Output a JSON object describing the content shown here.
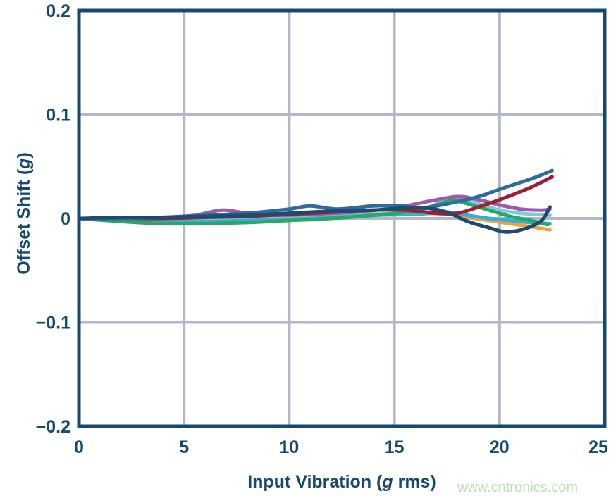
{
  "watermark": {
    "text": "www.cntronics.com",
    "color": "#b9dfae"
  },
  "chart_data": {
    "type": "line",
    "title": "",
    "xlabel": "Input Vibration (g rms)",
    "ylabel": "Offset Shift (g)",
    "xlabel_parts": {
      "pre": "Input Vibration (",
      "italic": "g",
      "post": " rms)"
    },
    "ylabel_parts": {
      "pre": "Offset Shift (",
      "italic": "g",
      "post": ")"
    },
    "xlim": [
      0,
      25
    ],
    "ylim": [
      -0.2,
      0.2
    ],
    "grid": true,
    "legend": "none",
    "x_ticks": [
      {
        "v": 0,
        "label": "0"
      },
      {
        "v": 5,
        "label": "5"
      },
      {
        "v": 10,
        "label": "10"
      },
      {
        "v": 15,
        "label": "15"
      },
      {
        "v": 20,
        "label": "20"
      },
      {
        "v": 25,
        "label": "25"
      }
    ],
    "y_ticks": [
      {
        "v": 0.2,
        "label": "0.2"
      },
      {
        "v": 0.1,
        "label": "0.1"
      },
      {
        "v": 0,
        "label": "0"
      },
      {
        "v": -0.1,
        "label": "−0.1"
      },
      {
        "v": -0.2,
        "label": "−0.2"
      }
    ],
    "x_gridlines": [
      5,
      10,
      15,
      20
    ],
    "y_gridlines": [
      -0.1,
      0,
      0.1
    ],
    "colors": {
      "frame": "#17496f",
      "grid": "#b2b8c9",
      "label": "#17496f"
    },
    "series": [
      {
        "name": "orange",
        "color": "#f0a03c",
        "points": [
          [
            0,
            0
          ],
          [
            2,
            -0.002
          ],
          [
            4,
            -0.003
          ],
          [
            6,
            -0.002
          ],
          [
            8,
            -0.001
          ],
          [
            10,
            0
          ],
          [
            12,
            0.002
          ],
          [
            14,
            0.004
          ],
          [
            16,
            0.005
          ],
          [
            17.5,
            0.004
          ],
          [
            18.5,
            0.001
          ],
          [
            19.5,
            -0.002
          ],
          [
            20.5,
            -0.005
          ],
          [
            21.5,
            -0.008
          ],
          [
            22.4,
            -0.011
          ]
        ]
      },
      {
        "name": "light-cyan",
        "color": "#7fc9e3",
        "points": [
          [
            0,
            0
          ],
          [
            2,
            -0.001
          ],
          [
            4,
            -0.002
          ],
          [
            6,
            -0.002
          ],
          [
            8,
            -0.001
          ],
          [
            10,
            0.001
          ],
          [
            12,
            0.002
          ],
          [
            14,
            0.004
          ],
          [
            15.5,
            0.006
          ],
          [
            16.5,
            0.01
          ],
          [
            17.3,
            0.016
          ],
          [
            18.2,
            0.019
          ],
          [
            19,
            0.014
          ],
          [
            20,
            0.008
          ],
          [
            21,
            0.005
          ],
          [
            22.4,
            0.003
          ]
        ]
      },
      {
        "name": "cyan",
        "color": "#33b1d4",
        "points": [
          [
            0,
            0
          ],
          [
            2,
            -0.002
          ],
          [
            4,
            -0.003
          ],
          [
            6,
            -0.003
          ],
          [
            8,
            -0.002
          ],
          [
            10,
            -0.001
          ],
          [
            12,
            0.001
          ],
          [
            14,
            0.003
          ],
          [
            16,
            0.004
          ],
          [
            17.5,
            0.006
          ],
          [
            18.5,
            0.003
          ],
          [
            19.5,
            0
          ],
          [
            20.5,
            -0.002
          ],
          [
            21.5,
            -0.004
          ],
          [
            22.4,
            -0.005
          ]
        ]
      },
      {
        "name": "green",
        "color": "#2aa863",
        "points": [
          [
            0,
            0
          ],
          [
            2,
            -0.003
          ],
          [
            4,
            -0.005
          ],
          [
            6,
            -0.005
          ],
          [
            8,
            -0.004
          ],
          [
            10,
            -0.002
          ],
          [
            12,
            0
          ],
          [
            14,
            0.003
          ],
          [
            15.5,
            0.006
          ],
          [
            16.5,
            0.01
          ],
          [
            17.7,
            0.017
          ],
          [
            18.5,
            0.014
          ],
          [
            19.5,
            0.008
          ],
          [
            20.5,
            0.002
          ],
          [
            21.5,
            -0.002
          ],
          [
            22.3,
            -0.006
          ]
        ]
      },
      {
        "name": "purple",
        "color": "#9c5bab",
        "points": [
          [
            0,
            0
          ],
          [
            2,
            0
          ],
          [
            4,
            0.001
          ],
          [
            5.5,
            0.003
          ],
          [
            6.8,
            0.008
          ],
          [
            8,
            0.005
          ],
          [
            9.5,
            0.003
          ],
          [
            11,
            0.004
          ],
          [
            13,
            0.006
          ],
          [
            15,
            0.01
          ],
          [
            16.5,
            0.016
          ],
          [
            18,
            0.021
          ],
          [
            19,
            0.018
          ],
          [
            20,
            0.013
          ],
          [
            21,
            0.009
          ],
          [
            22,
            0.008
          ],
          [
            22.4,
            0.009
          ]
        ]
      },
      {
        "name": "red",
        "color": "#9e1f35",
        "points": [
          [
            0,
            0
          ],
          [
            2,
            0
          ],
          [
            4,
            0
          ],
          [
            6,
            0.001
          ],
          [
            8,
            0.002
          ],
          [
            10,
            0.004
          ],
          [
            12,
            0.006
          ],
          [
            14,
            0.008
          ],
          [
            15.5,
            0.008
          ],
          [
            17,
            0.005
          ],
          [
            18,
            0.005
          ],
          [
            19,
            0.011
          ],
          [
            20,
            0.018
          ],
          [
            21.5,
            0.03
          ],
          [
            22.5,
            0.04
          ]
        ]
      },
      {
        "name": "blue",
        "color": "#2f6b9d",
        "points": [
          [
            0,
            0
          ],
          [
            2,
            0
          ],
          [
            4,
            0.001
          ],
          [
            6,
            0.003
          ],
          [
            8,
            0.005
          ],
          [
            10,
            0.009
          ],
          [
            11,
            0.012
          ],
          [
            12.3,
            0.009
          ],
          [
            14,
            0.012
          ],
          [
            15.3,
            0.012
          ],
          [
            16.3,
            0.01
          ],
          [
            17.5,
            0.014
          ],
          [
            19,
            0.021
          ],
          [
            20,
            0.028
          ],
          [
            21.5,
            0.038
          ],
          [
            22.5,
            0.046
          ]
        ]
      },
      {
        "name": "dark-navy",
        "color": "#1d4a6e",
        "points": [
          [
            0,
            0
          ],
          [
            2,
            0.001
          ],
          [
            4,
            0.001
          ],
          [
            6,
            0.002
          ],
          [
            8,
            0.003
          ],
          [
            10,
            0.005
          ],
          [
            12,
            0.007
          ],
          [
            14,
            0.008
          ],
          [
            15.5,
            0.01
          ],
          [
            16.5,
            0.01
          ],
          [
            17.5,
            0.006
          ],
          [
            18.5,
            -0.003
          ],
          [
            19.5,
            -0.009
          ],
          [
            20.3,
            -0.013
          ],
          [
            21.2,
            -0.01
          ],
          [
            22,
            -0.002
          ],
          [
            22.4,
            0.011
          ]
        ]
      }
    ]
  }
}
